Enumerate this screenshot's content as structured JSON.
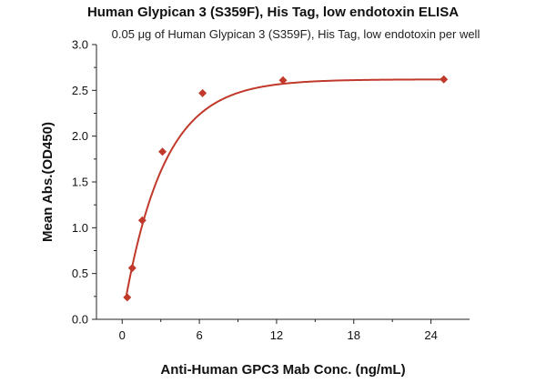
{
  "chart_data": {
    "type": "scatter",
    "title": "Human Glypican 3 (S359F), His Tag, low endotoxin ELISA",
    "subtitle": "0.05 μg of Human Glypican 3 (S359F), His Tag, low endotoxin per well",
    "xlabel": "Anti-Human GPC3 Mab Conc. (ng/mL)",
    "ylabel": "Mean Abs.(OD450)",
    "xlim": [
      -2,
      27
    ],
    "ylim": [
      0,
      3.0
    ],
    "xticks": [
      0,
      6,
      12,
      18,
      24
    ],
    "yticks": [
      0.0,
      0.5,
      1.0,
      1.5,
      2.0,
      2.5,
      3.0
    ],
    "ytick_labels": [
      "0.0",
      "0.5",
      "1.0",
      "1.5",
      "2.0",
      "2.5",
      "3.0"
    ],
    "grid": false,
    "series": [
      {
        "marker": "diamond",
        "color": "#c0392b",
        "points": [
          {
            "x": 0.39,
            "y": 0.24
          },
          {
            "x": 0.78,
            "y": 0.56
          },
          {
            "x": 1.56,
            "y": 1.08
          },
          {
            "x": 3.13,
            "y": 1.83
          },
          {
            "x": 6.25,
            "y": 2.47
          },
          {
            "x": 12.5,
            "y": 2.61
          },
          {
            "x": 25,
            "y": 2.62
          }
        ],
        "fit_curve": {
          "color": "#c0392b",
          "model": "y = 2.62 * (1 - exp(-0.32 * x)) + 0.0"
        }
      }
    ]
  }
}
